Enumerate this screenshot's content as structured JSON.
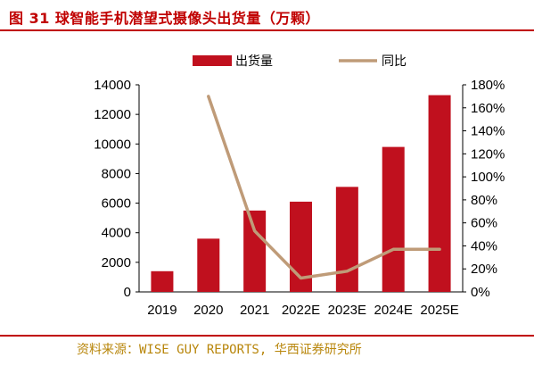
{
  "title": "图 31 球智能手机潜望式摄像头出货量（万颗）",
  "source": "资料来源：WISE GUY REPORTS, 华西证券研究所",
  "colors": {
    "bar": "#c0101e",
    "line": "#bf9b78",
    "title": "#c00000",
    "source": "#b8860b"
  },
  "chart_data": {
    "type": "bar",
    "categories": [
      "2019",
      "2020",
      "2021",
      "2022E",
      "2023E",
      "2024E",
      "2025E"
    ],
    "series": [
      {
        "name": "出货量",
        "type": "bar",
        "axis": "left",
        "values": [
          1400,
          3600,
          5500,
          6100,
          7100,
          9800,
          13300
        ]
      },
      {
        "name": "同比",
        "type": "line",
        "axis": "right",
        "values": [
          null,
          1.7,
          0.53,
          0.12,
          0.18,
          0.37,
          0.37
        ]
      }
    ],
    "yleft": {
      "lim": [
        0,
        14000
      ],
      "ticks": [
        "0",
        "2000",
        "4000",
        "6000",
        "8000",
        "10000",
        "12000",
        "14000"
      ]
    },
    "yright": {
      "lim": [
        0,
        1.8
      ],
      "ticks": [
        "0%",
        "20%",
        "40%",
        "60%",
        "80%",
        "100%",
        "120%",
        "140%",
        "160%",
        "180%"
      ]
    },
    "legend": "top"
  }
}
